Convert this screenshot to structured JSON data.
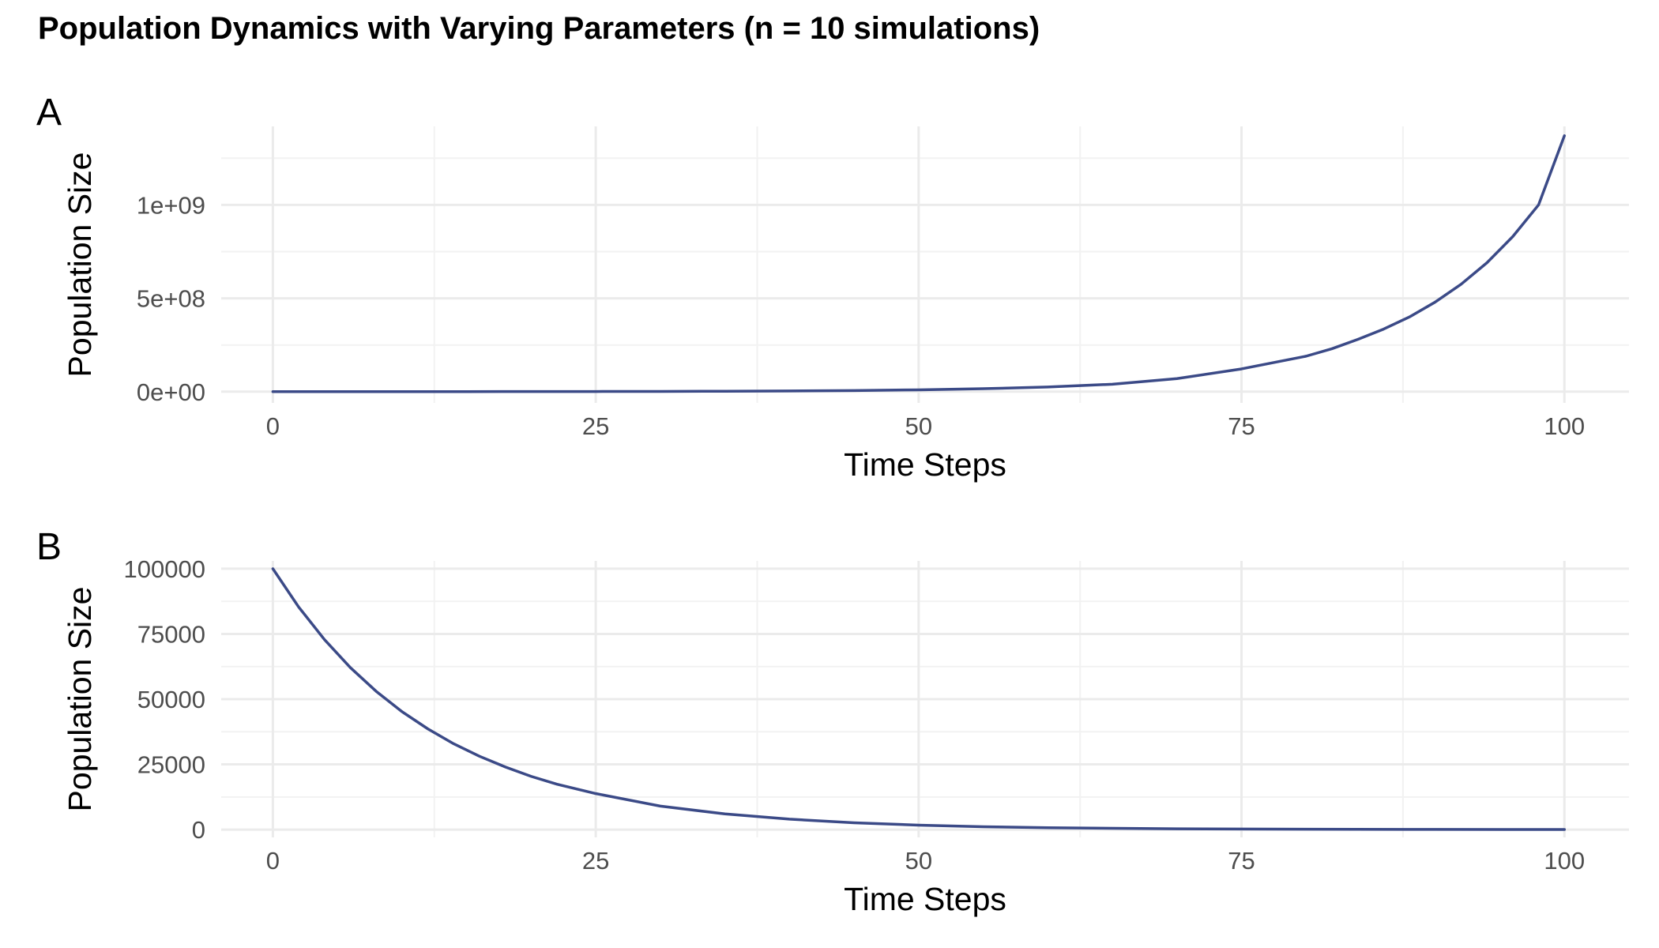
{
  "title": "Population Dynamics with Varying Parameters (n = 10 simulations)",
  "line_color": "#3b4a87",
  "chart_data": [
    {
      "type": "line",
      "panel_label": "A",
      "xlabel": "Time Steps",
      "ylabel": "Population Size",
      "xlim": [
        -4,
        105
      ],
      "ylim": [
        -60000000.0,
        1420000000.0
      ],
      "x_ticks": [
        0,
        25,
        50,
        75,
        100
      ],
      "x_tick_labels": [
        "0",
        "25",
        "50",
        "75",
        "100"
      ],
      "y_ticks": [
        0,
        500000000,
        1000000000
      ],
      "y_tick_labels": [
        "0e+00",
        "5e+08",
        "1e+09"
      ],
      "series": [
        {
          "x": [
            0,
            5,
            10,
            15,
            20,
            25,
            30,
            35,
            40,
            45,
            50,
            55,
            60,
            65,
            70,
            75,
            80,
            82,
            84,
            86,
            88,
            90,
            92,
            94,
            96,
            98,
            100
          ],
          "values": [
            100000,
            158000,
            251000,
            398000,
            630000,
            1000000,
            1580000,
            2510000,
            3980000,
            6300000,
            10000000,
            16000000,
            25000000,
            40000000,
            70000000,
            122000000,
            190000000,
            230000000,
            280000000,
            335000000,
            400000000,
            480000000,
            575000000,
            690000000,
            830000000,
            1000000000,
            1370000000
          ]
        }
      ],
      "grid": true
    },
    {
      "type": "line",
      "panel_label": "B",
      "xlabel": "Time Steps",
      "ylabel": "Population Size",
      "xlim": [
        -4,
        105
      ],
      "ylim": [
        -3000,
        103000
      ],
      "x_ticks": [
        0,
        25,
        50,
        75,
        100
      ],
      "x_tick_labels": [
        "0",
        "25",
        "50",
        "75",
        "100"
      ],
      "y_ticks": [
        0,
        25000,
        50000,
        75000,
        100000
      ],
      "y_tick_labels": [
        "0",
        "25000",
        "50000",
        "75000",
        "100000"
      ],
      "series": [
        {
          "x": [
            0,
            2,
            4,
            6,
            8,
            10,
            12,
            14,
            16,
            18,
            20,
            22,
            25,
            30,
            35,
            40,
            45,
            50,
            55,
            60,
            70,
            80,
            90,
            100
          ],
          "values": [
            100000,
            85300,
            72800,
            62100,
            53000,
            45200,
            38600,
            32900,
            28100,
            24000,
            20400,
            17400,
            13800,
            9000,
            6000,
            4000,
            2600,
            1700,
            1100,
            700,
            300,
            140,
            60,
            25
          ]
        }
      ],
      "grid": true
    }
  ]
}
